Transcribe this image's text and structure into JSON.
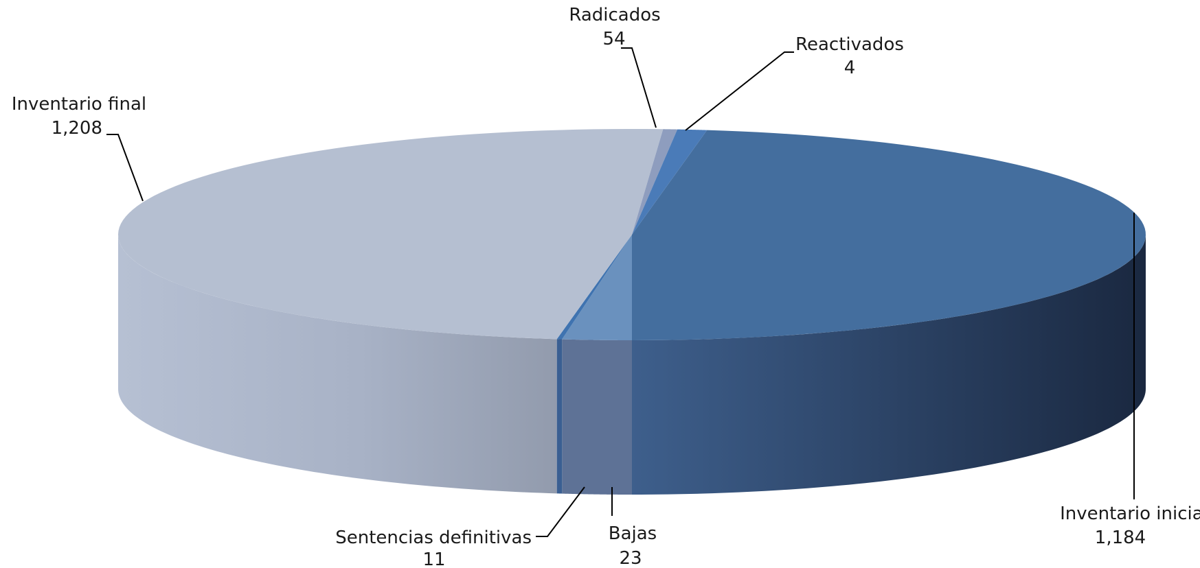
{
  "chart_data": {
    "type": "pie",
    "style": "3d",
    "title": "",
    "slices": [
      {
        "label": "Inventario inicial",
        "value": 1184,
        "value_text": "1,184",
        "color": "#446E9E"
      },
      {
        "label": "Radicados",
        "value": 54,
        "value_text": "54",
        "color": "#6A91BE"
      },
      {
        "label": "Reactivados",
        "value": 4,
        "value_text": "4",
        "color": "#3F73B0"
      },
      {
        "label": "Inventario final",
        "value": 1208,
        "value_text": "1,208",
        "color": "#B5BFD1"
      },
      {
        "label": "Sentencias definitivas",
        "value": 11,
        "value_text": "11",
        "color": "#8E9DBE"
      },
      {
        "label": "Bajas",
        "value": 23,
        "value_text": "23",
        "color": "#4A7BB8"
      }
    ],
    "legend": "none",
    "data_labels": "outside with leader lines"
  }
}
